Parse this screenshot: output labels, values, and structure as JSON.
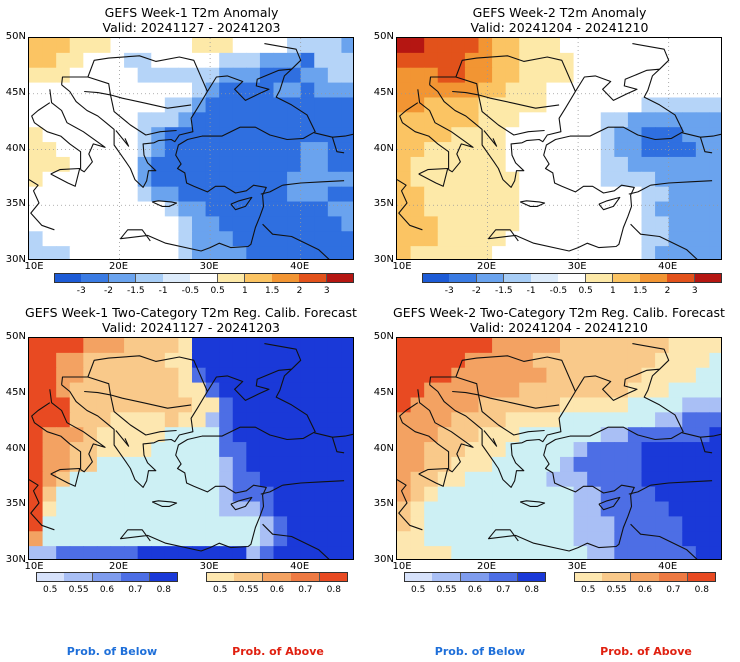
{
  "panels": [
    {
      "id": "w1-anom",
      "title": "GEFS Week-1 T2m Anomaly",
      "valid": "Valid: 20241127 - 20241203",
      "lat_ticks": [
        "50N",
        "45N",
        "40N",
        "35N",
        "30N"
      ],
      "lon_ticks": [
        "10E",
        "20E",
        "30E",
        "40E"
      ],
      "colorbar": {
        "type": "diverging",
        "labels": [
          "-3",
          "-2",
          "-1.5",
          "-1",
          "-0.5",
          "0.5",
          "1",
          "1.5",
          "2",
          "3"
        ],
        "colors": [
          "#1d5bd6",
          "#3a7be3",
          "#6aa3ee",
          "#a7cdf6",
          "#dcebfb",
          "#ffffff",
          "#fde9a8",
          "#fbc463",
          "#f29533",
          "#e2521b",
          "#b51612"
        ]
      },
      "field": [
        "2221110000001110000AAAAB",
        "2211000AA00000AAABBBCAAA",
        "11100000AAAAAABBBCCCBBAA",
        "000000000000ABCCCCBBCBBB",
        "0000000000AABCCCCCCCCCCC",
        "00000000AAABCCCCCCCCCCCC",
        "10000000ABCCCCCCCCCCCCCC",
        "11000000ABCCCCCCCCCCBBCC",
        "11100000BCCCCCCCCCCCBBCC",
        "10000000BCCCCCCCCCCBBBBB",
        "00000000ABBCCCCCCCCBBBCC",
        "0000000000ABBCCCCCCCCCBB",
        "00000000000ABBCCCCCCCCCB",
        "A0000000000ABBBCCCCCCCCC",
        "AAA00000000ABBBBCCCCCCCC"
      ]
    },
    {
      "id": "w2-anom",
      "title": "GEFS Week-2 T2m Anomaly",
      "valid": "Valid: 20241204 - 20241210",
      "lat_ticks": [
        "50N",
        "45N",
        "40N",
        "35N",
        "30N"
      ],
      "lon_ticks": [
        "10E",
        "20E",
        "30E",
        "40E"
      ],
      "colorbar": {
        "type": "diverging",
        "labels": [
          "-3",
          "-2",
          "-1.5",
          "-1",
          "-0.5",
          "0.5",
          "1",
          "1.5",
          "2",
          "3"
        ],
        "colors": [
          "#1d5bd6",
          "#3a7be3",
          "#6aa3ee",
          "#a7cdf6",
          "#dcebfb",
          "#ffffff",
          "#fde9a8",
          "#fbc463",
          "#f29533",
          "#e2521b",
          "#b51612"
        ]
      },
      "field": [
        "554444322111000000000000",
        "444443322111100000000000",
        "333443322111100000000000",
        "333333221110000000000000",
        "332222111110000000AAAAAA",
        "222222111000000AABBBBBBB",
        "222211110000000ABBCCCBBB",
        "221111110000000ABBCCCCBB",
        "211111110000000AABBBBBBB",
        "211111111000000AAAABBBBB",
        "221111111000000000AABBBB",
        "221111111000000000ABBBBB",
        "222111111000000000AABBBB",
        "222111110000000000AABBBB",
        "211111100000000000ABBBBB"
      ]
    },
    {
      "id": "w1-prob",
      "title": "GEFS Week-1 Two-Category T2m Reg. Calib. Forecast",
      "valid": "Valid: 20241127 - 20241203",
      "lat_ticks": [
        "50N",
        "45N",
        "40N",
        "35N",
        "30N"
      ],
      "lon_ticks": [
        "10E",
        "20E",
        "30E",
        "40E"
      ],
      "colorbar_below": {
        "labels": [
          "0.5",
          "0.55",
          "0.6",
          "0.7",
          "0.8"
        ],
        "colors": [
          "#d7e2fb",
          "#a9bff5",
          "#7f9cee",
          "#4d6ee5",
          "#1a39d8"
        ]
      },
      "colorbar_above": {
        "labels": [
          "0.5",
          "0.55",
          "0.6",
          "0.7",
          "0.8"
        ],
        "colors": [
          "#fde7b0",
          "#f9c98a",
          "#f3a262",
          "#ee7a43",
          "#e84a22"
        ]
      },
      "field": [
        "444433322221CCCCCCCCCCCC",
        "443322222211CCCCCCCCCCCC",
        "443322222221BCCCCCCCCCCC",
        "4432222222211BCCCCCCCCCC",
        "44422222222211BCCCCCCCCC",
        "4442221111211ABCCCCCCCCC",
        "43332111110000BCCCCCCCCC",
        "43322111100000BBCCCCCCCC",
        "43322000000000ABCCCCCCCC",
        "43200000000000ABBCCCCCCC",
        "42000000000000ABBBCCCCCC",
        "41000000000000AAABCCCCCC",
        "40000000000000000ABCCCCC",
        "30000000000000000ABCCCCC",
        "AABBBBBBCCCCCCCCABCCCCCC"
      ]
    },
    {
      "id": "w2-prob",
      "title": "GEFS Week-2 Two-Category T2m Reg. Calib. Forecast",
      "valid": "Valid: 20241204 - 20241210",
      "lat_ticks": [
        "50N",
        "45N",
        "40N",
        "35N",
        "30N"
      ],
      "lon_ticks": [
        "10E",
        "20E",
        "30E",
        "40E"
      ],
      "colorbar_below": {
        "labels": [
          "0.5",
          "0.55",
          "0.6",
          "0.7",
          "0.8"
        ],
        "colors": [
          "#d7e2fb",
          "#a9bff5",
          "#7f9cee",
          "#4d6ee5",
          "#1a39d8"
        ]
      },
      "colorbar_above": {
        "labels": [
          "0.5",
          "0.55",
          "0.6",
          "0.7",
          "0.8"
        ],
        "colors": [
          "#fde7b0",
          "#f9c98a",
          "#f3a262",
          "#ee7a43",
          "#e84a22"
        ]
      },
      "field": [
        "444444433333222222221111",
        "444443333322222222211110",
        "444433333332222222111100",
        "443333333222222221110000",
        "433333222222111110000AAA",
        "3333222211110000000AABBB",
        "333222111000000AABBBBBBC",
        "3322211100000ABBBBCCCCCC",
        "332211100000ABBBBBCCCCCC",
        "32211000000AAABBBBCCCCCC",
        "3210000000000AABBBBCCCCC",
        "2100000000000AABBBBBCCCC",
        "2100000000000AAABBBBBCCC",
        "1100000000000AAABBBBBCCC",
        "11110000000000AABBBBBBCC"
      ]
    }
  ],
  "prob_legend": {
    "below": "Prob. of Below",
    "above": "Prob. of Above",
    "below_color": "#1e6fd9",
    "above_color": "#e02010"
  }
}
